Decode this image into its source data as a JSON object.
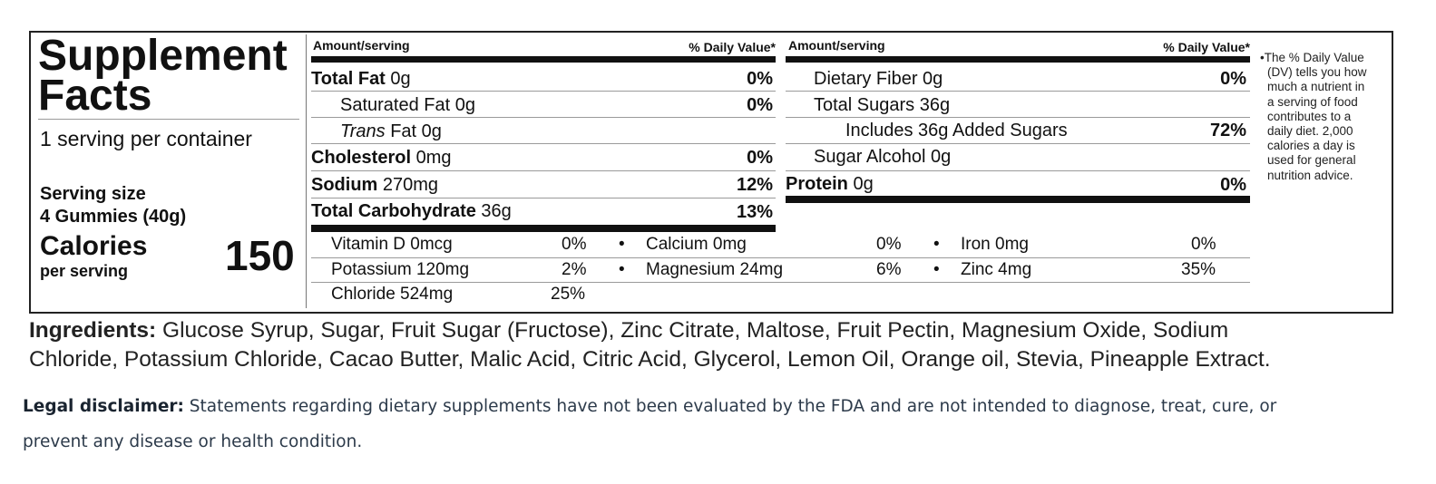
{
  "label": {
    "title_line1": "Supplement",
    "title_line2": "Facts",
    "servings_per_container": "1  serving per container",
    "serving_size_label": "Serving size",
    "serving_size_value": "4 Gummies (40g)",
    "calories_label": "Calories",
    "calories_sub": "per serving",
    "calories_value": "150",
    "col_header_amount": "Amount/serving",
    "col_header_dv": "% Daily Value*",
    "left_rows": [
      {
        "bold": "Total Fat",
        "rest": " 0g",
        "dv": "0%"
      },
      {
        "bold": "",
        "rest": "Saturated Fat 0g",
        "dv": "0%"
      },
      {
        "italic": "Trans",
        "rest": " Fat 0g",
        "dv": ""
      },
      {
        "bold": "Cholesterol",
        "rest": " 0mg",
        "dv": "0%"
      },
      {
        "bold": "Sodium",
        "rest": " 270mg",
        "dv": "12%"
      },
      {
        "bold": "Total Carbohydrate",
        "rest": " 36g",
        "dv": "13%"
      }
    ],
    "right_rows": [
      {
        "bold": "",
        "rest": "Dietary Fiber 0g",
        "dv": "0%"
      },
      {
        "bold": "",
        "rest": "Total Sugars 36g",
        "dv": ""
      },
      {
        "bold": "",
        "rest": "Includes 36g Added Sugars",
        "dv": "72%"
      },
      {
        "bold": "",
        "rest": "Sugar Alcohol 0g",
        "dv": ""
      },
      {
        "bold": "Protein",
        "rest": " 0g",
        "dv": "0%"
      }
    ],
    "minerals": [
      [
        {
          "name": "Vitamin D 0mcg",
          "dv": "0%"
        },
        {
          "name": "Calcium 0mg",
          "dv": "0%"
        },
        {
          "name": "Iron 0mg",
          "dv": "0%"
        }
      ],
      [
        {
          "name": "Potassium 120mg",
          "dv": "2%"
        },
        {
          "name": "Magnesium 24mg",
          "dv": "6%"
        },
        {
          "name": "Zinc 4mg",
          "dv": "35%"
        }
      ],
      [
        {
          "name": "Chloride 524mg",
          "dv": "25%"
        }
      ]
    ],
    "bullet": "•",
    "footnote_lines": [
      "•The % Daily Value",
      "(DV) tells you how",
      "much a nutrient in",
      "a serving of food",
      "contributes to a",
      "daily diet. 2,000",
      "calories a day is",
      "used for general",
      "nutrition advice."
    ]
  },
  "ingredients": {
    "label": "Ingredients:",
    "line1": " Glucose Syrup, Sugar, Fruit Sugar (Fructose), Zinc Citrate, Maltose, Fruit Pectin, Magnesium Oxide, Sodium",
    "line2": "Chloride, Potassium Chloride, Cacao Butter, Malic Acid, Citric Acid, Glycerol, Lemon Oil, Orange oil, Stevia, Pineapple Extract."
  },
  "legal": {
    "label": "Legal disclaimer:",
    "line1": " Statements regarding dietary supplements have not been evaluated by the FDA and are not intended to diagnose, treat, cure, or",
    "line2": "prevent any disease or health condition."
  }
}
